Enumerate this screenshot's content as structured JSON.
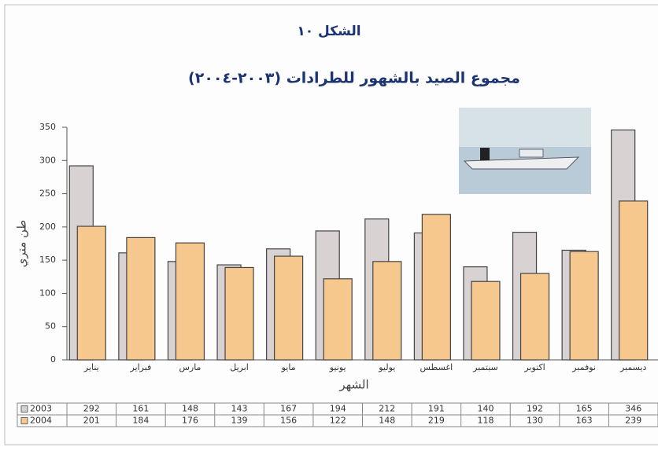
{
  "chart_data": {
    "type": "bar",
    "title": "الشكل ١٠",
    "subtitle": "مجموع الصيد بالشهور للطرادات (٢٠٠٣-٢٠٠٤)",
    "x_label": "الشهر",
    "y_label": "طن متري",
    "categories": [
      "يناير",
      "فبراير",
      "مارس",
      "ابريل",
      "مايو",
      "يونيو",
      "يوليو",
      "اغسطس",
      "سبتمبر",
      "اكتوبر",
      "نوفمبر",
      "ديسمبر"
    ],
    "series": [
      {
        "name": "2003",
        "color": "#d8d2d2",
        "values": [
          292,
          161,
          148,
          143,
          167,
          194,
          212,
          191,
          140,
          192,
          165,
          346
        ]
      },
      {
        "name": "2004",
        "color": "#f6c88e",
        "values": [
          201,
          184,
          176,
          139,
          156,
          122,
          148,
          219,
          118,
          130,
          163,
          239
        ]
      }
    ],
    "ylim": [
      0,
      350
    ],
    "yticks": [
      0,
      50,
      100,
      150,
      200,
      250,
      300,
      350
    ],
    "grid": false
  }
}
